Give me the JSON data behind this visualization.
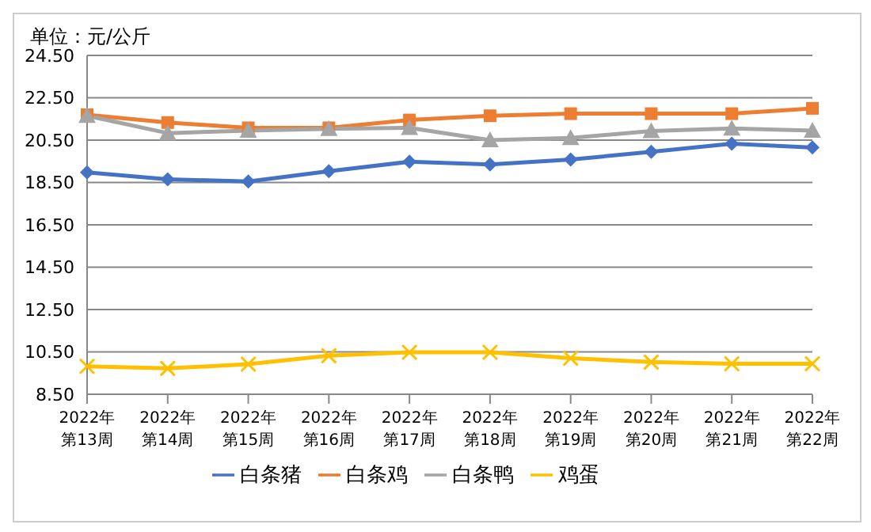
{
  "chart_data": {
    "type": "line",
    "subtitle": "单位：元/公斤",
    "categories": [
      "2022年第13周",
      "2022年第14周",
      "2022年第15周",
      "2022年第16周",
      "2022年第17周",
      "2022年第18周",
      "2022年第19周",
      "2022年第20周",
      "2022年第21周",
      "2022年第22周"
    ],
    "series": [
      {
        "name": "白条猪",
        "color": "#4472c4",
        "marker": "diamond",
        "values": [
          18.98,
          18.65,
          18.55,
          19.03,
          19.48,
          19.35,
          19.58,
          19.95,
          20.33,
          20.15
        ]
      },
      {
        "name": "白条鸡",
        "color": "#ed7d31",
        "marker": "square",
        "values": [
          21.7,
          21.33,
          21.08,
          21.08,
          21.45,
          21.65,
          21.75,
          21.75,
          21.75,
          22.0
        ]
      },
      {
        "name": "白条鸭",
        "color": "#a5a5a5",
        "marker": "triangle",
        "values": [
          21.65,
          20.83,
          20.95,
          21.03,
          21.08,
          20.5,
          20.6,
          20.93,
          21.05,
          20.95
        ]
      },
      {
        "name": "鸡蛋",
        "color": "#ffc000",
        "marker": "cross",
        "values": [
          9.82,
          9.72,
          9.92,
          10.32,
          10.48,
          10.48,
          10.2,
          10.02,
          9.94,
          9.94
        ]
      }
    ],
    "ylim": [
      8.5,
      24.5
    ],
    "yticks": [
      {
        "value": 8.5,
        "label": "8.50"
      },
      {
        "value": 10.5,
        "label": "10.50"
      },
      {
        "value": 12.5,
        "label": "12.50"
      },
      {
        "value": 14.5,
        "label": "14.50"
      },
      {
        "value": 16.5,
        "label": "16.50"
      },
      {
        "value": 18.5,
        "label": "18.50"
      },
      {
        "value": 20.5,
        "label": "20.50"
      },
      {
        "value": 22.5,
        "label": "22.50"
      },
      {
        "value": 24.5,
        "label": "24.50"
      }
    ],
    "grid": "y",
    "legend": "bottom"
  }
}
